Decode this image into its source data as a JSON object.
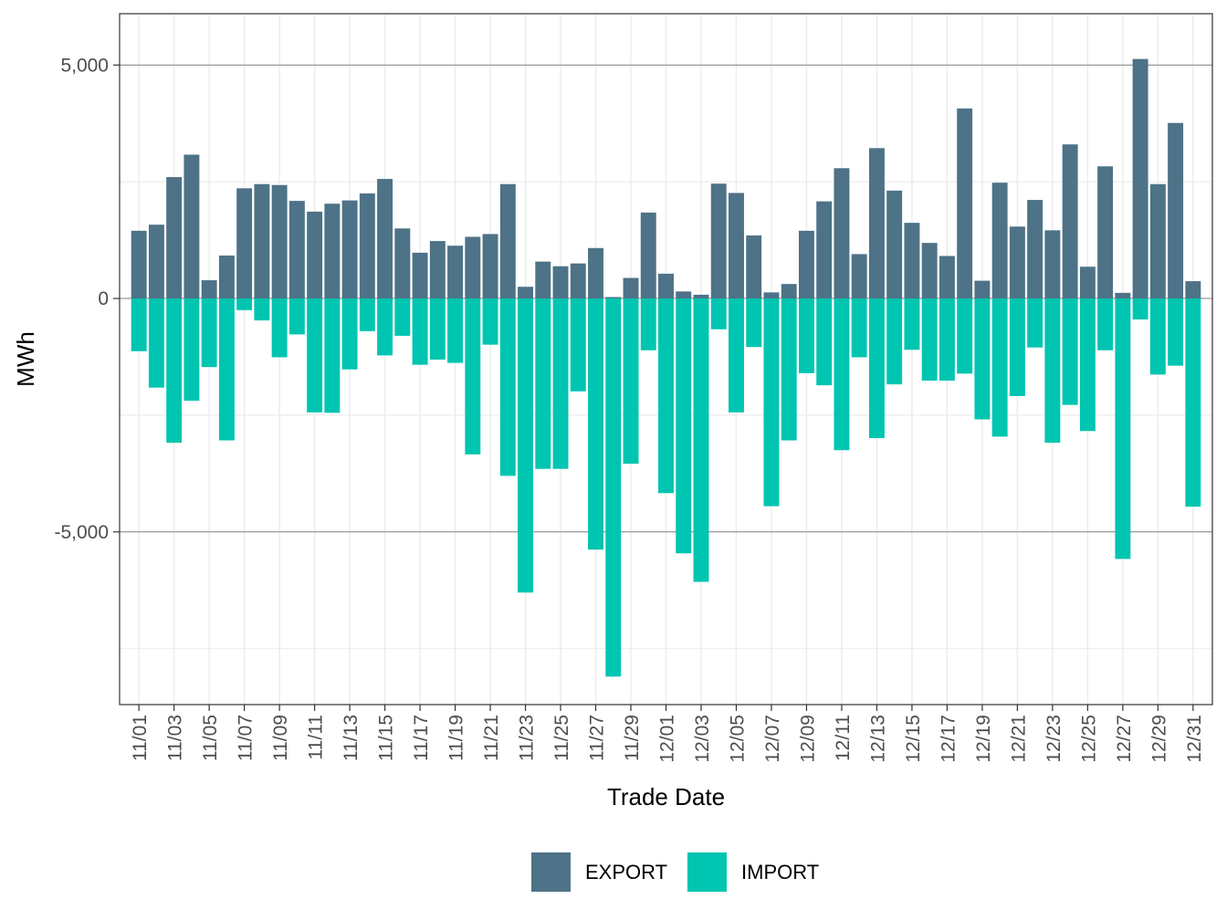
{
  "chart_data": {
    "type": "bar",
    "xlabel": "Trade Date",
    "ylabel": "MWh",
    "ylim": [
      -8700,
      6100
    ],
    "yticks": [
      -5000,
      0,
      5000
    ],
    "ytick_labels": [
      "-5,000",
      "0",
      "5,000"
    ],
    "grid": true,
    "legend_position": "bottom",
    "categories": [
      "11/01",
      "11/02",
      "11/03",
      "11/04",
      "11/05",
      "11/06",
      "11/07",
      "11/08",
      "11/09",
      "11/10",
      "11/11",
      "11/12",
      "11/13",
      "11/14",
      "11/15",
      "11/16",
      "11/17",
      "11/18",
      "11/19",
      "11/20",
      "11/21",
      "11/22",
      "11/23",
      "11/24",
      "11/25",
      "11/26",
      "11/27",
      "11/28",
      "11/29",
      "11/30",
      "12/01",
      "12/02",
      "12/03",
      "12/04",
      "12/05",
      "12/06",
      "12/07",
      "12/08",
      "12/09",
      "12/10",
      "12/11",
      "12/12",
      "12/13",
      "12/14",
      "12/15",
      "12/16",
      "12/17",
      "12/18",
      "12/19",
      "12/20",
      "12/21",
      "12/22",
      "12/23",
      "12/24",
      "12/25",
      "12/26",
      "12/27",
      "12/28",
      "12/29",
      "12/30",
      "12/31"
    ],
    "tick_labels": [
      "11/01",
      "11/03",
      "11/05",
      "11/07",
      "11/09",
      "11/11",
      "11/13",
      "11/15",
      "11/17",
      "11/19",
      "11/21",
      "11/23",
      "11/25",
      "11/27",
      "11/29",
      "12/01",
      "12/03",
      "12/05",
      "12/07",
      "12/09",
      "12/11",
      "12/13",
      "12/15",
      "12/17",
      "12/19",
      "12/21",
      "12/23",
      "12/25",
      "12/27",
      "12/29",
      "12/31"
    ],
    "series": [
      {
        "name": "EXPORT",
        "color": "#4e7287",
        "values": [
          1450,
          1580,
          2600,
          3080,
          390,
          920,
          2360,
          2450,
          2430,
          2090,
          1860,
          2030,
          2100,
          2250,
          2560,
          1500,
          980,
          1230,
          1130,
          1320,
          1380,
          2450,
          250,
          790,
          690,
          750,
          1080,
          30,
          440,
          1840,
          530,
          150,
          80,
          2460,
          2260,
          1350,
          130,
          310,
          1450,
          2080,
          2790,
          950,
          3220,
          2310,
          1620,
          1190,
          910,
          4070,
          380,
          2480,
          1540,
          2110,
          1460,
          3300,
          680,
          2830,
          120,
          5130,
          2450,
          3760,
          370
        ]
      },
      {
        "name": "IMPORT",
        "color": "#00c5b0",
        "values": [
          -1130,
          -1910,
          -3090,
          -2190,
          -1470,
          -3040,
          -250,
          -470,
          -1260,
          -770,
          -2440,
          -2450,
          -1520,
          -700,
          -1220,
          -800,
          -1420,
          -1310,
          -1380,
          -3340,
          -990,
          -3800,
          -6300,
          -3650,
          -3650,
          -1990,
          -5380,
          -8100,
          -3540,
          -1110,
          -4170,
          -5460,
          -6070,
          -660,
          -2440,
          -1040,
          -4450,
          -3040,
          -1600,
          -1860,
          -3250,
          -1260,
          -2990,
          -1840,
          -1100,
          -1760,
          -1760,
          -1610,
          -2590,
          -2960,
          -2090,
          -1050,
          -3090,
          -2280,
          -2840,
          -1110,
          -5580,
          -450,
          -1630,
          -1440,
          -4460
        ]
      }
    ]
  }
}
